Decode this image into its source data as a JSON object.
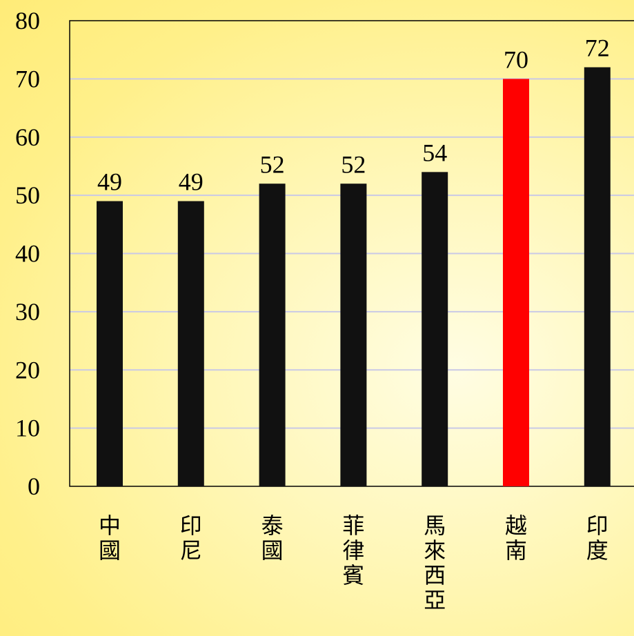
{
  "chart_data": {
    "type": "bar",
    "categories": [
      "中國",
      "印尼",
      "泰國",
      "菲律賓",
      "馬來西亞",
      "越南",
      "印度"
    ],
    "values": [
      49,
      49,
      52,
      52,
      54,
      70,
      72
    ],
    "bar_colors": [
      "#111111",
      "#111111",
      "#111111",
      "#111111",
      "#111111",
      "#ff0000",
      "#111111"
    ],
    "ylim": [
      0,
      80
    ],
    "yticks": [
      0,
      10,
      20,
      30,
      40,
      50,
      60,
      70,
      80
    ],
    "grid": true,
    "gridline_color": "#c9c9e6",
    "title": "",
    "xlabel": "",
    "ylabel": ""
  }
}
